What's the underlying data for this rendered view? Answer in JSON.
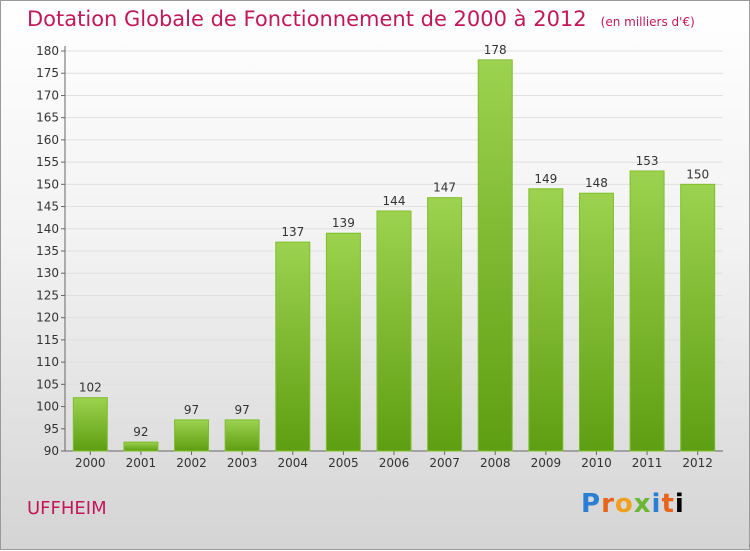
{
  "header": {
    "title": "Dotation Globale de Fonctionnement de 2000 à 2012",
    "unit": "(en milliers d'€)"
  },
  "footer": {
    "commune": "UFFHEIM",
    "logo": "Proxiti"
  },
  "colors": {
    "bar_top": "#9cd24f",
    "bar_bottom": "#5e9e12",
    "title": "#c2185b"
  },
  "chart_data": {
    "type": "bar",
    "categories": [
      "2000",
      "2001",
      "2002",
      "2003",
      "2004",
      "2005",
      "2006",
      "2007",
      "2008",
      "2009",
      "2010",
      "2011",
      "2012"
    ],
    "values": [
      102,
      92,
      97,
      97,
      137,
      139,
      144,
      147,
      178,
      149,
      148,
      153,
      150
    ],
    "ylim": [
      90,
      180
    ],
    "yticks": [
      90,
      95,
      100,
      105,
      110,
      115,
      120,
      125,
      130,
      135,
      140,
      145,
      150,
      155,
      160,
      165,
      170,
      175,
      180
    ],
    "grid": true
  }
}
